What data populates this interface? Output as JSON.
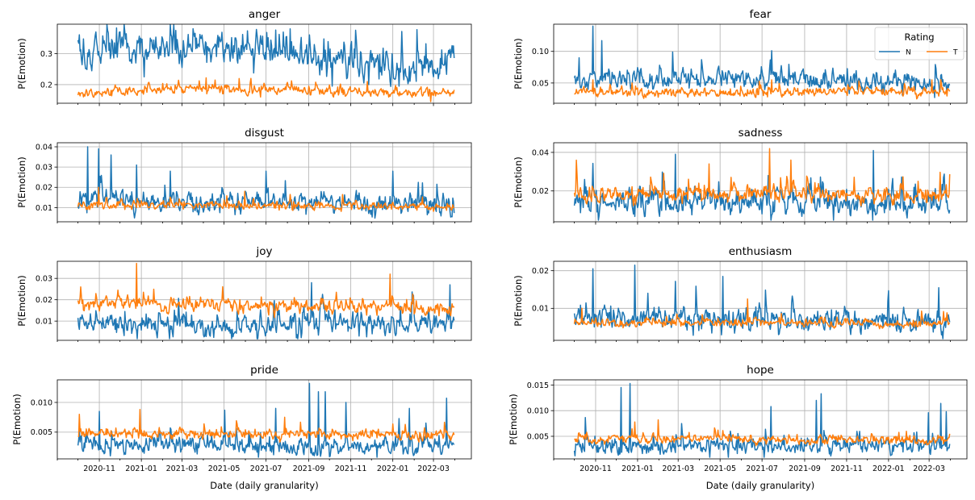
{
  "figure": {
    "xlabel": "Date (daily granularity)",
    "ylabel": "P(Emotion)"
  },
  "legend": {
    "title": "Rating",
    "entries": [
      {
        "label": "N",
        "color": "#1f77b4"
      },
      {
        "label": "T",
        "color": "#ff7f0e"
      }
    ],
    "placement": "upper-right of 'fear' panel"
  },
  "chart_data": [
    {
      "type": "line",
      "title": "anger",
      "xlabel": "",
      "ylabel": "P(Emotion)",
      "x_range": [
        "2020-10-01",
        "2022-03-31"
      ],
      "xlim": [
        "2020-09-01",
        "2022-04-25"
      ],
      "ylim": [
        0.14,
        0.395
      ],
      "yticks": [
        0.2,
        0.3
      ],
      "ytick_labels": [
        "0.2",
        "0.3"
      ],
      "grid": true,
      "series": [
        {
          "name": "N",
          "color": "#1f77b4",
          "baseline": [
            [
              0.0,
              0.31
            ],
            [
              0.55,
              0.31
            ],
            [
              0.7,
              0.28
            ],
            [
              0.85,
              0.25
            ],
            [
              0.95,
              0.27
            ],
            [
              1.0,
              0.27
            ]
          ],
          "noise": 0.03,
          "peaks": [
            [
              "2021-02-20",
              0.375
            ],
            [
              "2021-08-05",
              0.38
            ],
            [
              "2022-03-30",
              0.325
            ]
          ],
          "troughs": [
            [
              "2021-01-05",
              0.225
            ],
            [
              "2021-10-05",
              0.195
            ],
            [
              "2022-01-10",
              0.195
            ]
          ]
        },
        {
          "name": "T",
          "color": "#ff7f0e",
          "baseline": [
            [
              0.0,
              0.168
            ],
            [
              0.25,
              0.185
            ],
            [
              0.55,
              0.182
            ],
            [
              1.0,
              0.172
            ]
          ],
          "noise": 0.009,
          "peaks": [
            [
              "2021-04-05",
              0.222
            ],
            [
              "2021-11-25",
              0.21
            ]
          ],
          "troughs": [
            [
              "2022-02-25",
              0.145
            ]
          ]
        }
      ]
    },
    {
      "type": "line",
      "title": "fear",
      "xlabel": "",
      "ylabel": "P(Emotion)",
      "x_range": [
        "2020-10-01",
        "2022-03-31"
      ],
      "xlim": [
        "2020-09-01",
        "2022-04-25"
      ],
      "ylim": [
        0.018,
        0.143
      ],
      "yticks": [
        0.05,
        0.1
      ],
      "ytick_labels": [
        "0.05",
        "0.10"
      ],
      "grid": true,
      "series": [
        {
          "name": "N",
          "color": "#1f77b4",
          "baseline": [
            [
              0.0,
              0.055
            ],
            [
              0.1,
              0.055
            ],
            [
              0.5,
              0.055
            ],
            [
              1.0,
              0.047
            ]
          ],
          "noise": 0.009,
          "peaks": [
            [
              "2020-10-08",
              0.09
            ],
            [
              "2020-10-28",
              0.14
            ],
            [
              "2020-11-10",
              0.117
            ],
            [
              "2021-07-15",
              0.101
            ]
          ],
          "troughs": []
        },
        {
          "name": "T",
          "color": "#ff7f0e",
          "baseline": [
            [
              0.0,
              0.037
            ],
            [
              0.3,
              0.033
            ],
            [
              0.6,
              0.036
            ],
            [
              1.0,
              0.036
            ]
          ],
          "noise": 0.004,
          "peaks": [
            [
              "2020-10-28",
              0.055
            ],
            [
              "2021-07-15",
              0.055
            ],
            [
              "2022-03-05",
              0.055
            ]
          ],
          "troughs": []
        }
      ]
    },
    {
      "type": "line",
      "title": "disgust",
      "xlabel": "",
      "ylabel": "P(Emotion)",
      "x_range": [
        "2020-10-01",
        "2022-03-31"
      ],
      "xlim": [
        "2020-09-01",
        "2022-04-25"
      ],
      "ylim": [
        0.003,
        0.042
      ],
      "yticks": [
        0.01,
        0.02,
        0.03,
        0.04
      ],
      "ytick_labels": [
        "0.01",
        "0.02",
        "0.03",
        "0.04"
      ],
      "grid": true,
      "series": [
        {
          "name": "N",
          "color": "#1f77b4",
          "baseline": [
            [
              0.0,
              0.014
            ],
            [
              0.3,
              0.012
            ],
            [
              0.5,
              0.013
            ],
            [
              1.0,
              0.011
            ]
          ],
          "noise": 0.003,
          "peaks": [
            [
              "2020-10-15",
              0.04
            ],
            [
              "2020-10-31",
              0.039
            ],
            [
              "2020-11-18",
              0.036
            ],
            [
              "2020-12-25",
              0.031
            ],
            [
              "2021-02-12",
              0.028
            ],
            [
              "2021-07-01",
              0.028
            ],
            [
              "2022-01-01",
              0.028
            ]
          ],
          "troughs": []
        },
        {
          "name": "T",
          "color": "#ff7f0e",
          "baseline": [
            [
              0.0,
              0.011
            ],
            [
              0.5,
              0.011
            ],
            [
              1.0,
              0.01
            ]
          ],
          "noise": 0.0012,
          "peaks": [
            [
              "2020-10-31",
              0.02
            ],
            [
              "2021-05-31",
              0.018
            ]
          ],
          "troughs": []
        }
      ]
    },
    {
      "type": "line",
      "title": "sadness",
      "xlabel": "",
      "ylabel": "P(Emotion)",
      "x_range": [
        "2020-10-01",
        "2022-03-31"
      ],
      "xlim": [
        "2020-09-01",
        "2022-04-25"
      ],
      "ylim": [
        0.004,
        0.045
      ],
      "yticks": [
        0.02,
        0.04
      ],
      "ytick_labels": [
        "0.02",
        "0.04"
      ],
      "grid": true,
      "series": [
        {
          "name": "N",
          "color": "#1f77b4",
          "baseline": [
            [
              0.0,
              0.014
            ],
            [
              0.5,
              0.015
            ],
            [
              1.0,
              0.012
            ]
          ],
          "noise": 0.004,
          "peaks": [
            [
              "2021-02-25",
              0.039
            ],
            [
              "2021-07-10",
              0.028
            ],
            [
              "2021-12-10",
              0.041
            ]
          ],
          "troughs": []
        },
        {
          "name": "T",
          "color": "#ff7f0e",
          "baseline": [
            [
              0.0,
              0.017
            ],
            [
              0.5,
              0.019
            ],
            [
              1.0,
              0.017
            ]
          ],
          "noise": 0.0025,
          "peaks": [
            [
              "2021-07-12",
              0.042
            ],
            [
              "2021-04-15",
              0.034
            ],
            [
              "2021-08-12",
              0.036
            ]
          ],
          "troughs": []
        }
      ]
    },
    {
      "type": "line",
      "title": "joy",
      "xlabel": "",
      "ylabel": "P(Emotion)",
      "x_range": [
        "2020-10-01",
        "2022-03-31"
      ],
      "xlim": [
        "2020-09-01",
        "2022-04-25"
      ],
      "ylim": [
        0.001,
        0.038
      ],
      "yticks": [
        0.01,
        0.02,
        0.03
      ],
      "ytick_labels": [
        "0.01",
        "0.02",
        "0.03"
      ],
      "grid": true,
      "series": [
        {
          "name": "N",
          "color": "#1f77b4",
          "baseline": [
            [
              0.0,
              0.009
            ],
            [
              0.5,
              0.007
            ],
            [
              0.7,
              0.009
            ],
            [
              1.0,
              0.008
            ]
          ],
          "noise": 0.003,
          "peaks": [
            [
              "2021-09-05",
              0.028
            ],
            [
              "2022-03-25",
              0.027
            ]
          ],
          "troughs": []
        },
        {
          "name": "T",
          "color": "#ff7f0e",
          "baseline": [
            [
              0.0,
              0.018
            ],
            [
              0.5,
              0.017
            ],
            [
              1.0,
              0.016
            ]
          ],
          "noise": 0.0018,
          "peaks": [
            [
              "2020-12-25",
              0.037
            ],
            [
              "2021-12-28",
              0.032
            ],
            [
              "2020-10-05",
              0.026
            ]
          ],
          "troughs": []
        }
      ]
    },
    {
      "type": "line",
      "title": "enthusiasm",
      "xlabel": "",
      "ylabel": "P(Emotion)",
      "x_range": [
        "2020-10-01",
        "2022-03-31"
      ],
      "xlim": [
        "2020-09-01",
        "2022-04-25"
      ],
      "ylim": [
        0.0015,
        0.0225
      ],
      "yticks": [
        0.01,
        0.02
      ],
      "ytick_labels": [
        "0.01",
        "0.02"
      ],
      "grid": true,
      "series": [
        {
          "name": "N",
          "color": "#1f77b4",
          "baseline": [
            [
              0.0,
              0.007
            ],
            [
              0.5,
              0.007
            ],
            [
              1.0,
              0.006
            ]
          ],
          "noise": 0.002,
          "peaks": [
            [
              "2020-10-28",
              0.0205
            ],
            [
              "2020-12-28",
              0.0215
            ],
            [
              "2021-05-05",
              0.0185
            ],
            [
              "2022-03-15",
              0.0155
            ]
          ],
          "troughs": []
        },
        {
          "name": "T",
          "color": "#ff7f0e",
          "baseline": [
            [
              0.0,
              0.006
            ],
            [
              0.5,
              0.0062
            ],
            [
              1.0,
              0.0058
            ]
          ],
          "noise": 0.0006,
          "peaks": [
            [
              "2021-06-10",
              0.0125
            ],
            [
              "2020-10-12",
              0.01
            ]
          ],
          "troughs": []
        }
      ]
    },
    {
      "type": "line",
      "title": "pride",
      "xlabel": "Date (daily granularity)",
      "ylabel": "P(Emotion)",
      "x_range": [
        "2020-10-01",
        "2022-03-31"
      ],
      "xlim": [
        "2020-09-01",
        "2022-04-25"
      ],
      "ylim": [
        0.0005,
        0.0138
      ],
      "yticks": [
        0.005,
        0.01
      ],
      "ytick_labels": [
        "0.005",
        "0.010"
      ],
      "grid": true,
      "xticks": [
        "2020-11-01",
        "2021-01-01",
        "2021-03-01",
        "2021-05-01",
        "2021-07-01",
        "2021-09-01",
        "2021-11-01",
        "2022-01-01",
        "2022-03-01"
      ],
      "xtick_labels": [
        "2020-11",
        "2021-01",
        "2021-03",
        "2021-05",
        "2021-07",
        "2021-09",
        "2021-11",
        "2022-01",
        "2022-03"
      ],
      "series": [
        {
          "name": "N",
          "color": "#1f77b4",
          "baseline": [
            [
              0.0,
              0.003
            ],
            [
              0.5,
              0.0025
            ],
            [
              1.0,
              0.0025
            ]
          ],
          "noise": 0.0009,
          "peaks": [
            [
              "2020-11-01",
              0.0085
            ],
            [
              "2021-05-02",
              0.0087
            ],
            [
              "2021-07-15",
              0.009
            ],
            [
              "2021-09-02",
              0.0132
            ],
            [
              "2021-09-15",
              0.0118
            ],
            [
              "2021-09-25",
              0.0118
            ],
            [
              "2021-10-25",
              0.01
            ],
            [
              "2022-01-25",
              0.009
            ],
            [
              "2022-03-20",
              0.0107
            ]
          ],
          "troughs": []
        },
        {
          "name": "T",
          "color": "#ff7f0e",
          "baseline": [
            [
              0.0,
              0.0048
            ],
            [
              0.5,
              0.0045
            ],
            [
              1.0,
              0.0045
            ]
          ],
          "noise": 0.0005,
          "peaks": [
            [
              "2020-12-30",
              0.0088
            ],
            [
              "2020-10-03",
              0.008
            ],
            [
              "2021-07-28",
              0.0075
            ]
          ],
          "troughs": []
        }
      ]
    },
    {
      "type": "line",
      "title": "hope",
      "xlabel": "Date (daily granularity)",
      "ylabel": "P(Emotion)",
      "x_range": [
        "2020-10-01",
        "2022-03-31"
      ],
      "xlim": [
        "2020-09-01",
        "2022-04-25"
      ],
      "ylim": [
        0.0006,
        0.016
      ],
      "yticks": [
        0.005,
        0.01,
        0.015
      ],
      "ytick_labels": [
        "0.005",
        "0.010",
        "0.015"
      ],
      "grid": true,
      "xticks": [
        "2020-11-01",
        "2021-01-01",
        "2021-03-01",
        "2021-05-01",
        "2021-07-01",
        "2021-09-01",
        "2021-11-01",
        "2022-01-01",
        "2022-03-01"
      ],
      "xtick_labels": [
        "2020-11",
        "2021-01",
        "2021-03",
        "2021-05",
        "2021-07",
        "2021-09",
        "2021-11",
        "2022-01",
        "2022-03"
      ],
      "series": [
        {
          "name": "N",
          "color": "#1f77b4",
          "baseline": [
            [
              0.0,
              0.003
            ],
            [
              0.5,
              0.003
            ],
            [
              1.0,
              0.003
            ]
          ],
          "noise": 0.0009,
          "peaks": [
            [
              "2020-12-08",
              0.0145
            ],
            [
              "2020-12-21",
              0.0153
            ],
            [
              "2021-07-14",
              0.0108
            ],
            [
              "2021-09-18",
              0.012
            ],
            [
              "2021-09-25",
              0.0133
            ],
            [
              "2022-02-28",
              0.0096
            ],
            [
              "2022-03-18",
              0.0114
            ],
            [
              "2022-03-26",
              0.0098
            ]
          ],
          "troughs": []
        },
        {
          "name": "T",
          "color": "#ff7f0e",
          "baseline": [
            [
              0.0,
              0.0045
            ],
            [
              0.5,
              0.0043
            ],
            [
              1.0,
              0.0042
            ]
          ],
          "noise": 0.0005,
          "peaks": [
            [
              "2021-01-31",
              0.0082
            ],
            [
              "2020-12-28",
              0.0078
            ],
            [
              "2021-04-28",
              0.0062
            ]
          ],
          "troughs": []
        }
      ]
    }
  ]
}
